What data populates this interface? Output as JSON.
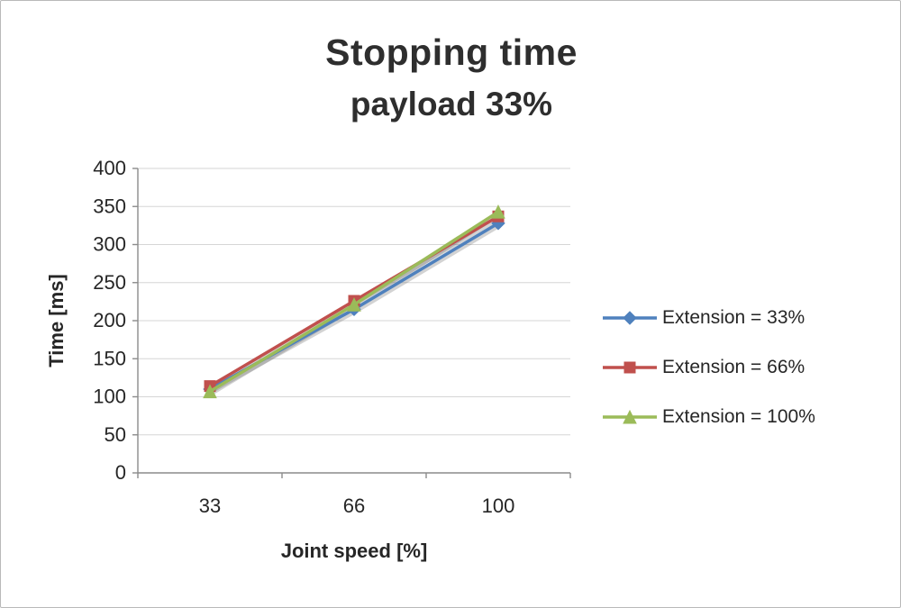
{
  "chart_data": {
    "type": "line",
    "title": "Stopping time",
    "subtitle": "payload 33%",
    "xlabel": "Joint speed [%]",
    "ylabel": "Time [ms]",
    "categories": [
      "33",
      "66",
      "100"
    ],
    "ylim": [
      0,
      400
    ],
    "ytick_step": 50,
    "grid": "horizontal",
    "legend_position": "right",
    "series": [
      {
        "name": "Extension = 33%",
        "color": "#4F81BD",
        "marker": "diamond",
        "values": [
          110,
          215,
          328
        ]
      },
      {
        "name": "Extension = 66%",
        "color": "#C0504D",
        "marker": "square",
        "values": [
          114,
          226,
          337
        ]
      },
      {
        "name": "Extension = 100%",
        "color": "#9BBB59",
        "marker": "triangle",
        "values": [
          107,
          221,
          343
        ]
      }
    ]
  }
}
